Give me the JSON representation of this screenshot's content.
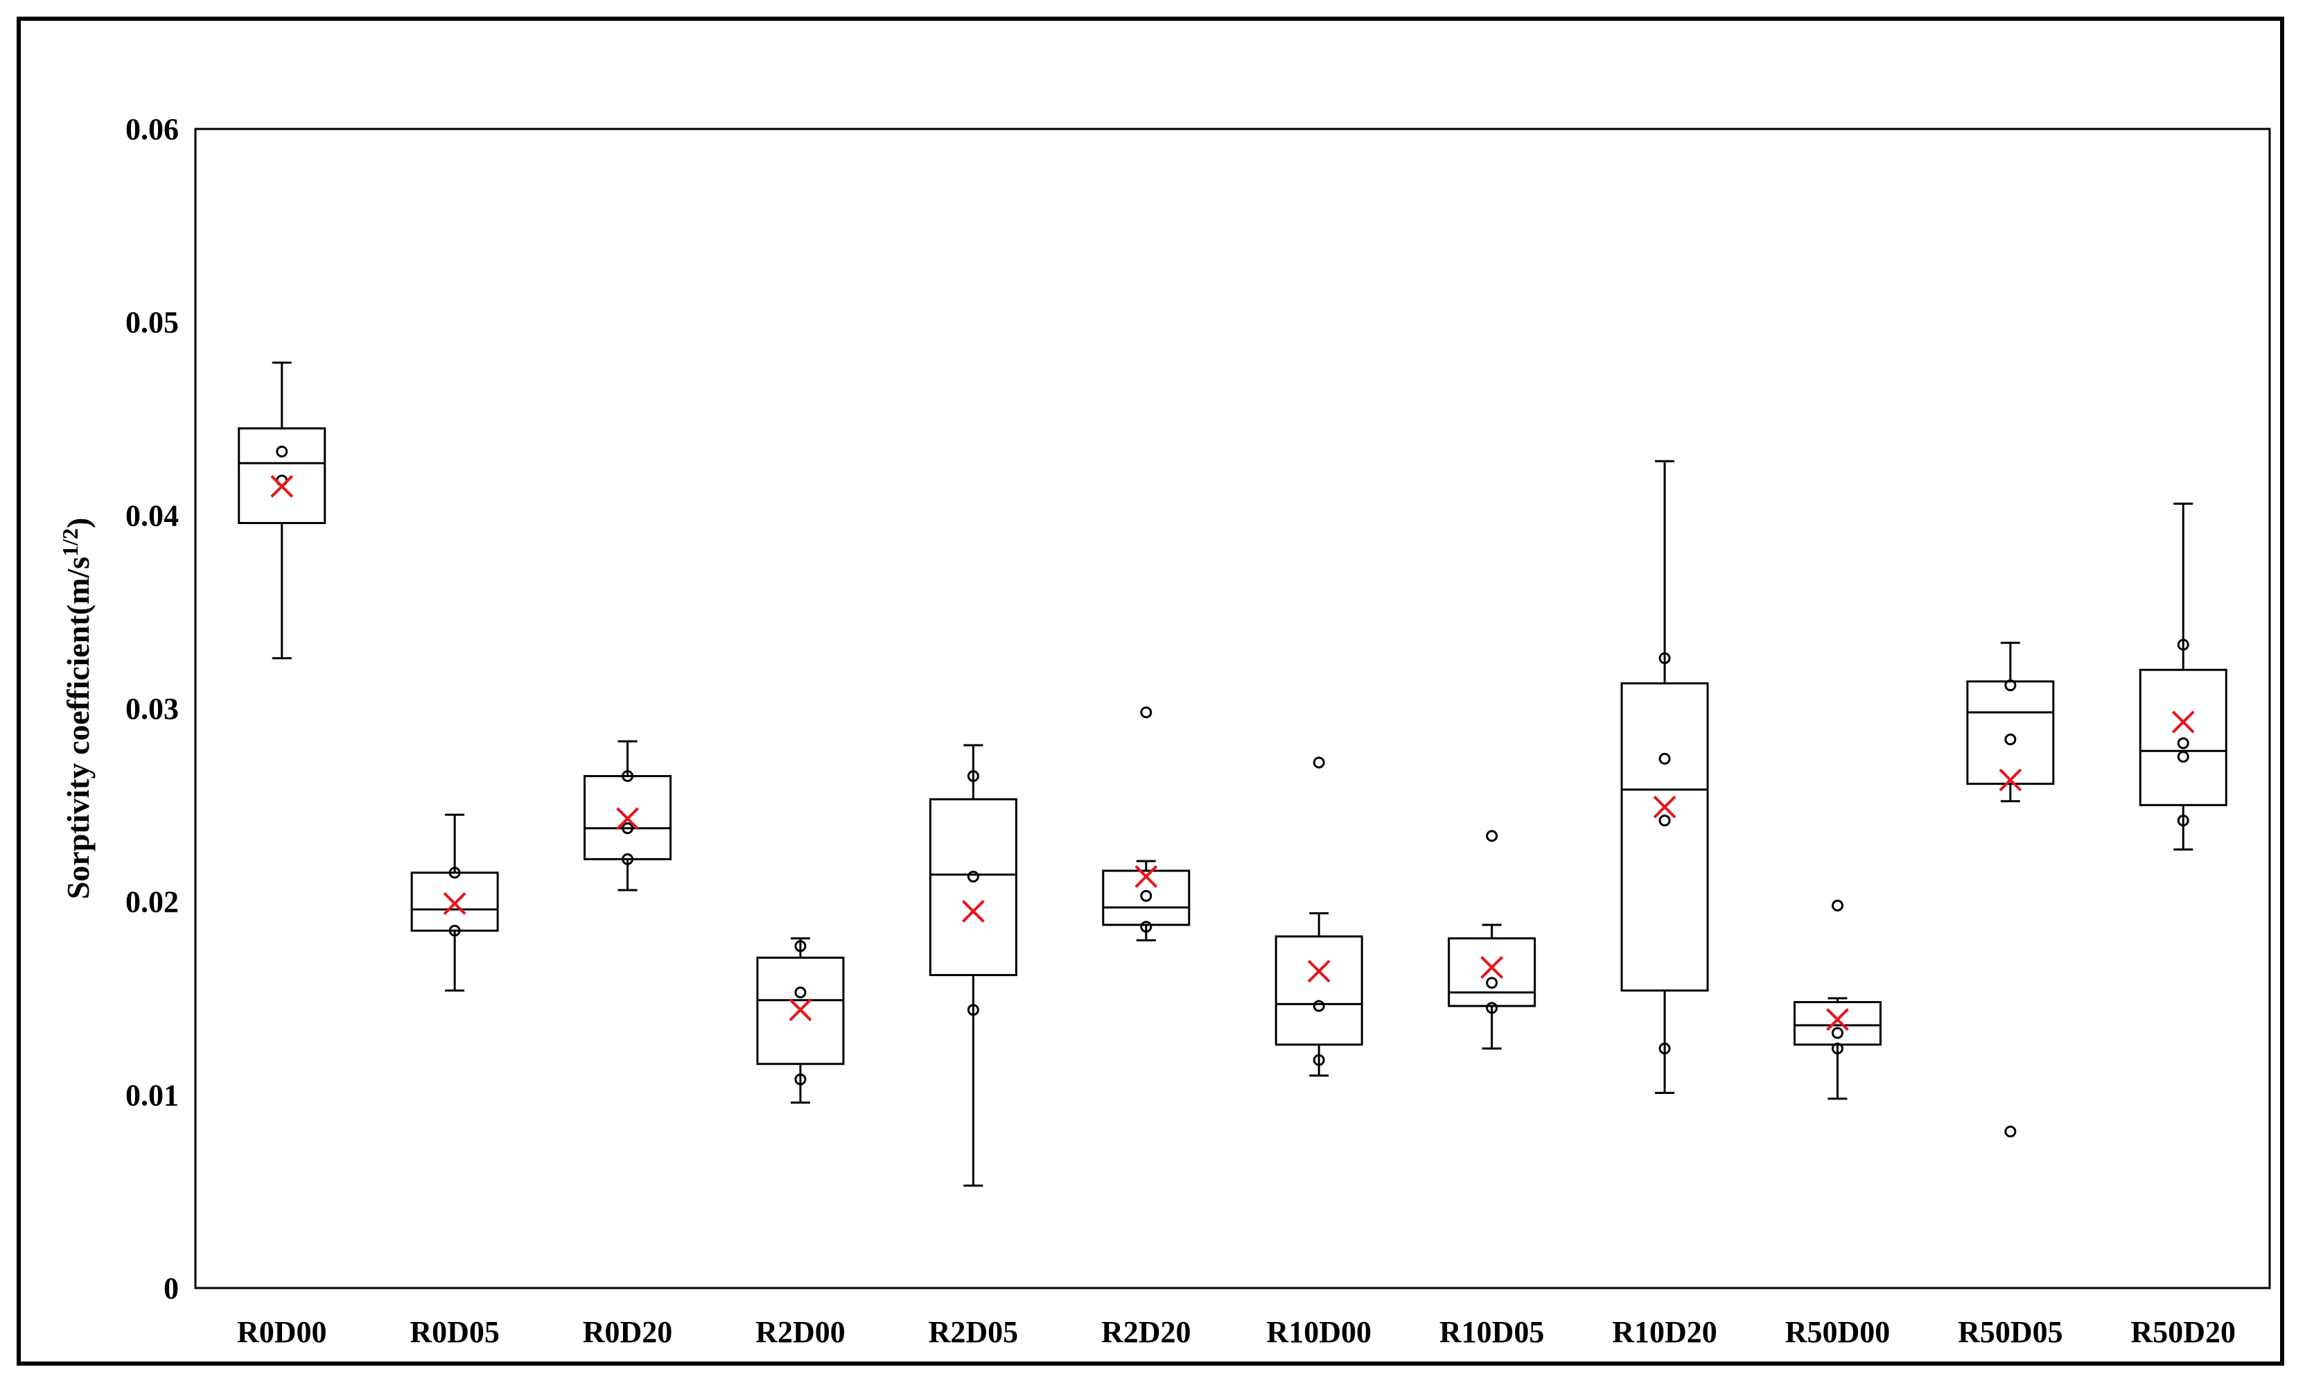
{
  "chart_data": {
    "type": "box",
    "title": "",
    "xlabel": "",
    "ylabel_main": "Sorptivity coefficient(m/s",
    "ylabel_sup": "1/2",
    "ylabel_close": ")",
    "ylim": [
      0,
      0.06
    ],
    "yticks": [
      0,
      0.01,
      0.02,
      0.03,
      0.04,
      0.05,
      0.06
    ],
    "ytick_labels": [
      "0",
      "0.01",
      "0.02",
      "0.03",
      "0.04",
      "0.05",
      "0.06"
    ],
    "grid": false,
    "colors": {
      "box": "#000000",
      "mean_marker": "#e8141c",
      "points": "#000000"
    },
    "series": [
      {
        "name": "R0D00",
        "min": 0.0326,
        "q1": 0.0396,
        "median": 0.0427,
        "q3": 0.0445,
        "max": 0.0479,
        "mean": 0.0415,
        "points": [
          0.0433,
          0.0418
        ]
      },
      {
        "name": "R0D05",
        "min": 0.0154,
        "q1": 0.0185,
        "median": 0.0196,
        "q3": 0.0215,
        "max": 0.0245,
        "mean": 0.0199,
        "points": [
          0.0215,
          0.0185
        ]
      },
      {
        "name": "R0D20",
        "min": 0.0206,
        "q1": 0.0222,
        "median": 0.0238,
        "q3": 0.0265,
        "max": 0.0283,
        "mean": 0.0243,
        "points": [
          0.0265,
          0.0238,
          0.0222
        ]
      },
      {
        "name": "R2D00",
        "min": 0.0096,
        "q1": 0.0116,
        "median": 0.0149,
        "q3": 0.0171,
        "max": 0.0181,
        "mean": 0.0144,
        "points": [
          0.0177,
          0.0153,
          0.0108
        ]
      },
      {
        "name": "R2D05",
        "min": 0.0053,
        "q1": 0.0162,
        "median": 0.0214,
        "q3": 0.0253,
        "max": 0.0281,
        "mean": 0.0195,
        "points": [
          0.0265,
          0.0213,
          0.0144
        ]
      },
      {
        "name": "R2D20",
        "min": 0.018,
        "q1": 0.0188,
        "median": 0.0197,
        "q3": 0.0216,
        "max": 0.0221,
        "mean": 0.0213,
        "points": [
          0.0298,
          0.0203,
          0.0187
        ]
      },
      {
        "name": "R10D00",
        "min": 0.011,
        "q1": 0.0126,
        "median": 0.0147,
        "q3": 0.0182,
        "max": 0.0194,
        "mean": 0.0164,
        "points": [
          0.0272,
          0.0146,
          0.0118
        ]
      },
      {
        "name": "R10D05",
        "min": 0.0124,
        "q1": 0.0146,
        "median": 0.0153,
        "q3": 0.0181,
        "max": 0.0188,
        "mean": 0.0166,
        "points": [
          0.0234,
          0.0158,
          0.0145
        ]
      },
      {
        "name": "R10D20",
        "min": 0.0101,
        "q1": 0.0154,
        "median": 0.0258,
        "q3": 0.0313,
        "max": 0.0428,
        "mean": 0.0249,
        "points": [
          0.0326,
          0.0274,
          0.0242,
          0.0124
        ]
      },
      {
        "name": "R50D00",
        "min": 0.0098,
        "q1": 0.0126,
        "median": 0.0136,
        "q3": 0.0148,
        "max": 0.015,
        "mean": 0.0139,
        "points": [
          0.0198,
          0.0132,
          0.0124
        ]
      },
      {
        "name": "R50D05",
        "min": 0.0252,
        "q1": 0.0261,
        "median": 0.0298,
        "q3": 0.0314,
        "max": 0.0334,
        "mean": 0.0263,
        "points": [
          0.0312,
          0.0284,
          0.0081
        ]
      },
      {
        "name": "R50D20",
        "min": 0.0227,
        "q1": 0.025,
        "median": 0.0278,
        "q3": 0.032,
        "max": 0.0406,
        "mean": 0.0293,
        "points": [
          0.0333,
          0.0282,
          0.0275,
          0.0242
        ]
      }
    ]
  }
}
